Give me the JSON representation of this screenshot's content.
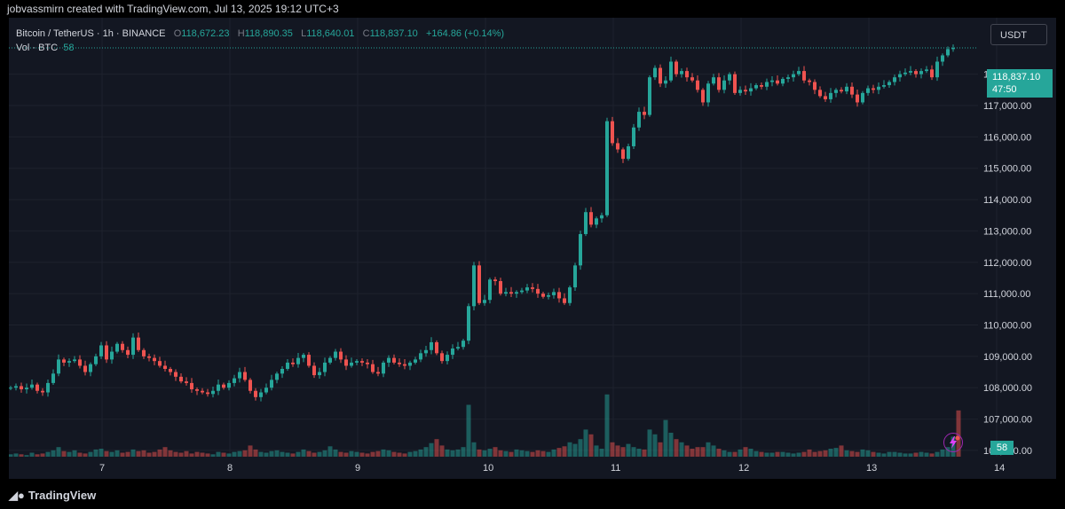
{
  "header": {
    "attribution": "jobvassmirn created with TradingView.com, Jul 13, 2025 19:12 UTC+3"
  },
  "legend": {
    "symbol": "Bitcoin / TetherUS · 1h · BINANCE",
    "open_label": "O",
    "open": "118,672.23",
    "high_label": "H",
    "high": "118,890.35",
    "low_label": "L",
    "low": "118,640.01",
    "close_label": "C",
    "close": "118,837.10",
    "change": "+164.86 (+0.14%)",
    "volume_label": "Vol · BTC",
    "volume_value": "58"
  },
  "currency_button": "USDT",
  "price_tag": {
    "price": "118,837.10",
    "countdown": "47:50"
  },
  "volume_tag": "58",
  "footer": {
    "brand": "TradingView"
  },
  "colors": {
    "up": "#26a69a",
    "down": "#ef5350",
    "background": "#131722",
    "grid": "#1e222d"
  },
  "chart_data": {
    "type": "candlestick",
    "interval": "1h",
    "x_ticks": [
      "7",
      "8",
      "9",
      "10",
      "11",
      "12",
      "13",
      "14"
    ],
    "y_ticks": [
      "118,000.00",
      "117,000.00",
      "116,000.00",
      "115,000.00",
      "114,000.00",
      "113,000.00",
      "112,000.00",
      "111,000.00",
      "110,000.00",
      "109,000.00",
      "108,000.00",
      "107,000.00",
      "106,000.00"
    ],
    "ylim": [
      105800,
      119800
    ],
    "last_price": 118837.1,
    "closes": [
      108000,
      108050,
      107950,
      108000,
      108100,
      107900,
      107850,
      108150,
      108450,
      108900,
      108800,
      108850,
      108900,
      108700,
      108500,
      108750,
      109000,
      109350,
      108900,
      109150,
      109400,
      109200,
      109050,
      109600,
      109200,
      109000,
      108950,
      108850,
      108700,
      108600,
      108500,
      108350,
      108200,
      108150,
      107950,
      107900,
      107850,
      107800,
      107900,
      108100,
      108000,
      108150,
      108300,
      108500,
      108250,
      107900,
      107700,
      107850,
      108000,
      108250,
      108450,
      108600,
      108800,
      108750,
      108950,
      109050,
      108700,
      108400,
      108500,
      108800,
      108950,
      109150,
      108900,
      108700,
      108800,
      108850,
      108800,
      108750,
      108500,
      108450,
      108800,
      108950,
      108800,
      108750,
      108700,
      108800,
      108900,
      109100,
      109200,
      109450,
      109100,
      108850,
      109050,
      109250,
      109300,
      109500,
      110600,
      111900,
      110700,
      110800,
      111450,
      111400,
      111000,
      111050,
      111000,
      111050,
      111100,
      111200,
      111150,
      111000,
      110900,
      110950,
      111050,
      110850,
      110700,
      111200,
      111900,
      112900,
      113600,
      113200,
      113400,
      113500,
      116500,
      115800,
      115600,
      115300,
      115700,
      116300,
      116800,
      116700,
      117900,
      118200,
      117700,
      117800,
      118400,
      118000,
      118100,
      117900,
      117800,
      117500,
      117100,
      117700,
      117900,
      117500,
      117800,
      118000,
      117400,
      117500,
      117450,
      117550,
      117650,
      117600,
      117750,
      117800,
      117700,
      117850,
      117900,
      118000,
      118100,
      117800,
      117750,
      117500,
      117300,
      117200,
      117400,
      117500,
      117450,
      117600,
      117350,
      117100,
      117400,
      117550,
      117500,
      117600,
      117650,
      117750,
      117900,
      118000,
      118050,
      118100,
      118000,
      118100,
      118150,
      117900,
      118400,
      118600,
      118800,
      118837.1
    ],
    "volumes": [
      3,
      4,
      3,
      2,
      5,
      3,
      4,
      6,
      8,
      12,
      7,
      6,
      8,
      5,
      4,
      6,
      9,
      10,
      7,
      6,
      8,
      5,
      6,
      9,
      7,
      8,
      5,
      6,
      9,
      12,
      8,
      6,
      5,
      7,
      4,
      6,
      5,
      4,
      3,
      6,
      5,
      4,
      6,
      7,
      8,
      14,
      9,
      6,
      5,
      7,
      8,
      6,
      5,
      4,
      6,
      9,
      7,
      5,
      6,
      8,
      13,
      9,
      6,
      5,
      7,
      6,
      5,
      4,
      6,
      7,
      9,
      8,
      6,
      5,
      4,
      6,
      7,
      9,
      12,
      17,
      22,
      14,
      9,
      8,
      9,
      12,
      65,
      18,
      9,
      8,
      10,
      12,
      8,
      7,
      6,
      9,
      8,
      7,
      6,
      8,
      7,
      6,
      9,
      11,
      13,
      18,
      16,
      22,
      34,
      28,
      14,
      10,
      78,
      18,
      14,
      12,
      16,
      12,
      10,
      9,
      34,
      28,
      18,
      46,
      30,
      22,
      18,
      14,
      10,
      12,
      12,
      18,
      14,
      10,
      8,
      6,
      6,
      9,
      12,
      10,
      7,
      6,
      5,
      5,
      6,
      6,
      5,
      4,
      5,
      6,
      9,
      6,
      7,
      8,
      10,
      11,
      14,
      8,
      7,
      6,
      9,
      8,
      6,
      5,
      4,
      6,
      6,
      5,
      4,
      4,
      5,
      6,
      5,
      4,
      6,
      9,
      12,
      25,
      58
    ]
  }
}
